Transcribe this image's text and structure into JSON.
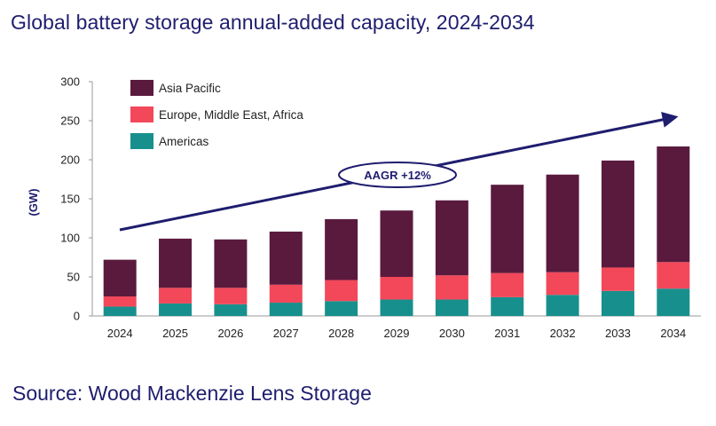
{
  "title": "Global battery storage annual-added capacity, 2024-2034",
  "source": "Source: Wood Mackenzie Lens Storage",
  "chart_data": {
    "type": "bar",
    "stacked": true,
    "categories": [
      "2024",
      "2025",
      "2026",
      "2027",
      "2028",
      "2029",
      "2030",
      "2031",
      "2032",
      "2033",
      "2034"
    ],
    "series": [
      {
        "name": "Americas",
        "color": "#17908d",
        "values": [
          12,
          16,
          15,
          17,
          19,
          21,
          21,
          24,
          27,
          32,
          35
        ]
      },
      {
        "name": "Europe, Middle East, Africa",
        "color": "#f2485a",
        "values": [
          13,
          20,
          21,
          23,
          27,
          29,
          31,
          31,
          29,
          30,
          34
        ]
      },
      {
        "name": "Asia Pacific",
        "color": "#5a1a3e",
        "values": [
          47,
          63,
          62,
          68,
          78,
          85,
          96,
          113,
          125,
          137,
          148
        ]
      }
    ],
    "legend_order": [
      "Asia Pacific",
      "Europe, Middle East, Africa",
      "Americas"
    ],
    "ylabel": "(GW)",
    "xlabel": "",
    "ylim": [
      0,
      300
    ],
    "yticks": [
      0,
      50,
      100,
      150,
      200,
      250,
      300
    ],
    "grid": false,
    "legend_position": "top-left",
    "annotation": "AAGR +12%",
    "axis_color": "#1f1d6e"
  }
}
